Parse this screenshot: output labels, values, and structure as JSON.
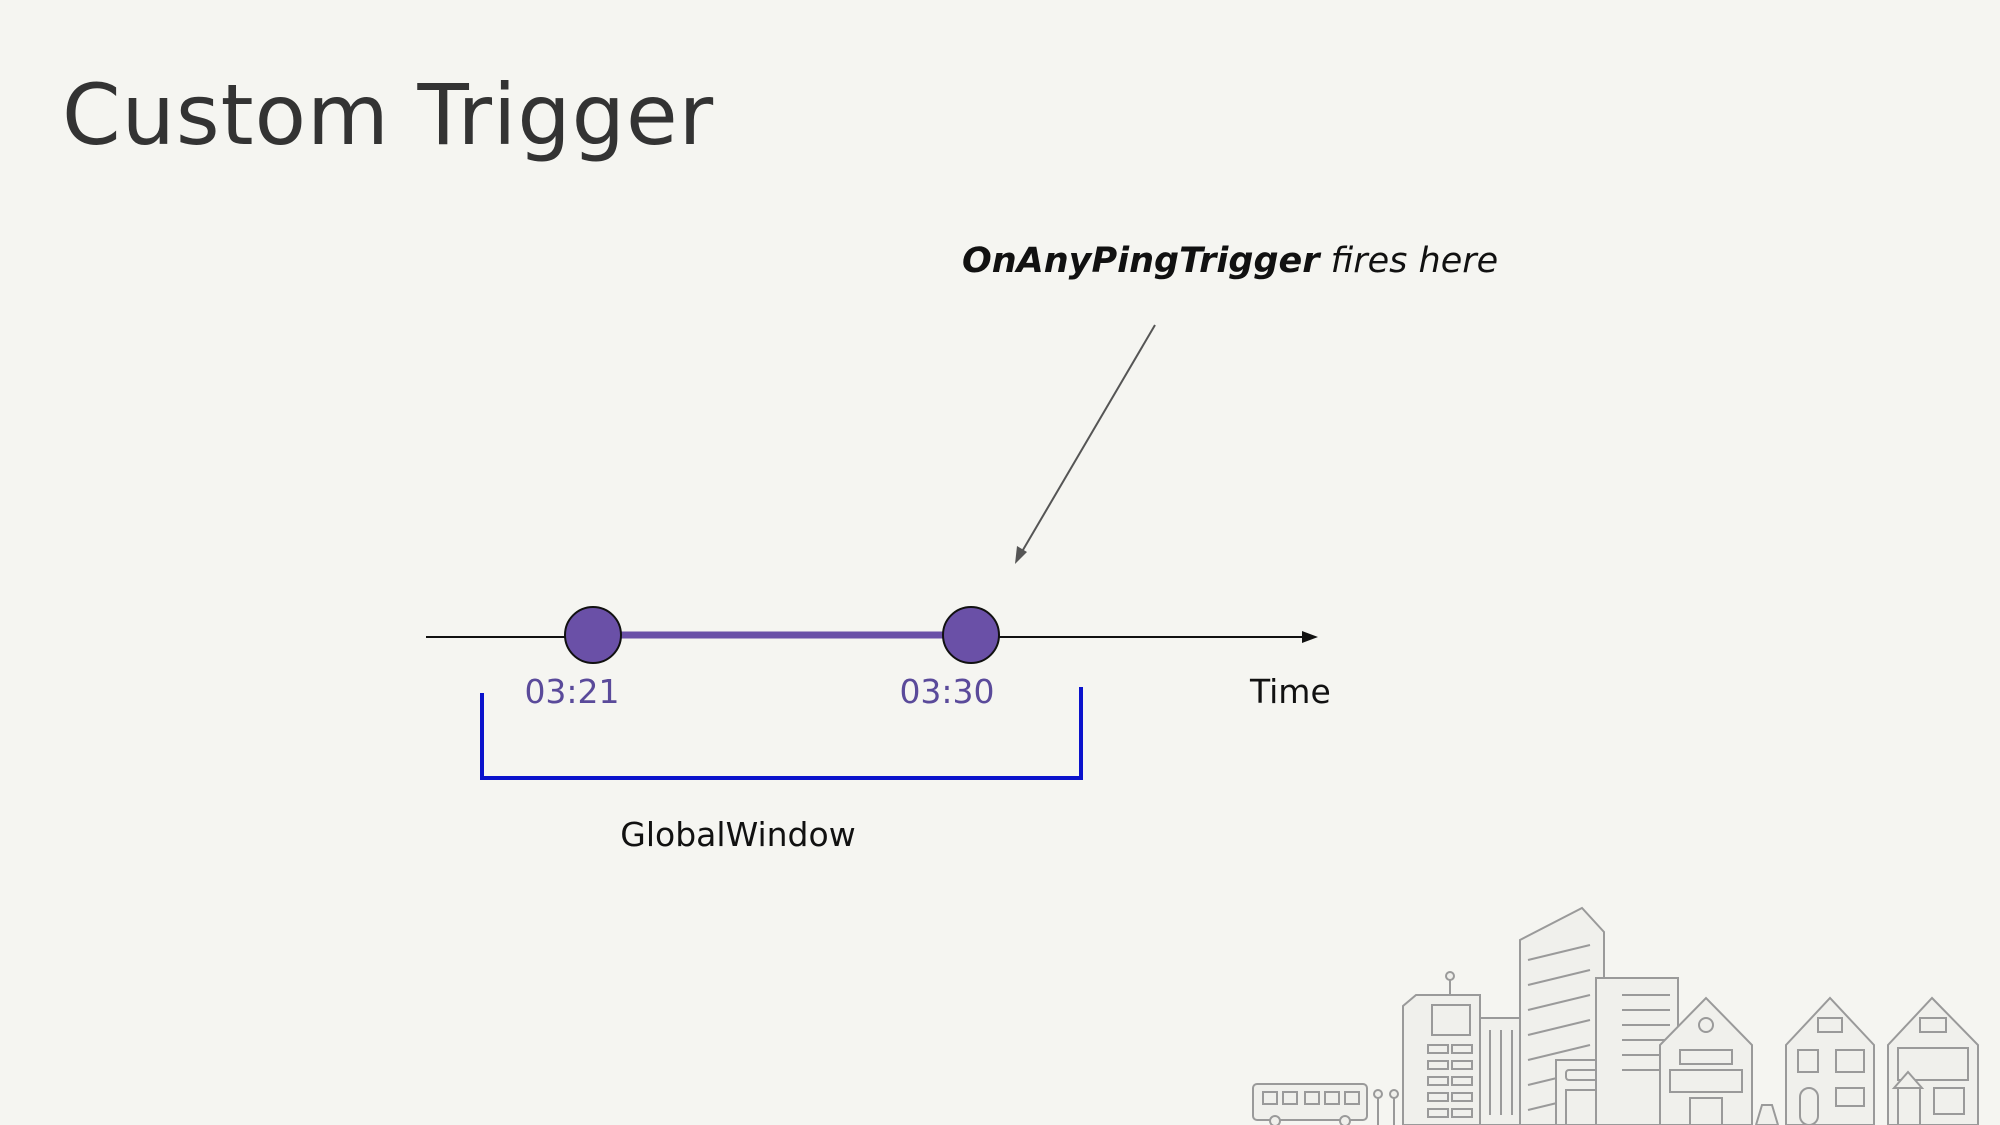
{
  "slide": {
    "title": "Custom Trigger"
  },
  "annotation": {
    "strong": "OnAnyPingTrigger",
    "rest": " fires here"
  },
  "timeline": {
    "axis_label": "Time",
    "events": [
      {
        "label": "03:21"
      },
      {
        "label": "03:30"
      }
    ],
    "window_label": "GlobalWindow"
  },
  "colors": {
    "background": "#f5f5f1",
    "title": "#333333",
    "event_fill": "#6a50a7",
    "event_label": "#5a4a9a",
    "window_bracket": "#0a12cc",
    "axis": "#111111",
    "arrow": "#555555",
    "illustration": "#9a9a9a"
  },
  "decor": {
    "illustration": "city-skyline-illustration"
  }
}
